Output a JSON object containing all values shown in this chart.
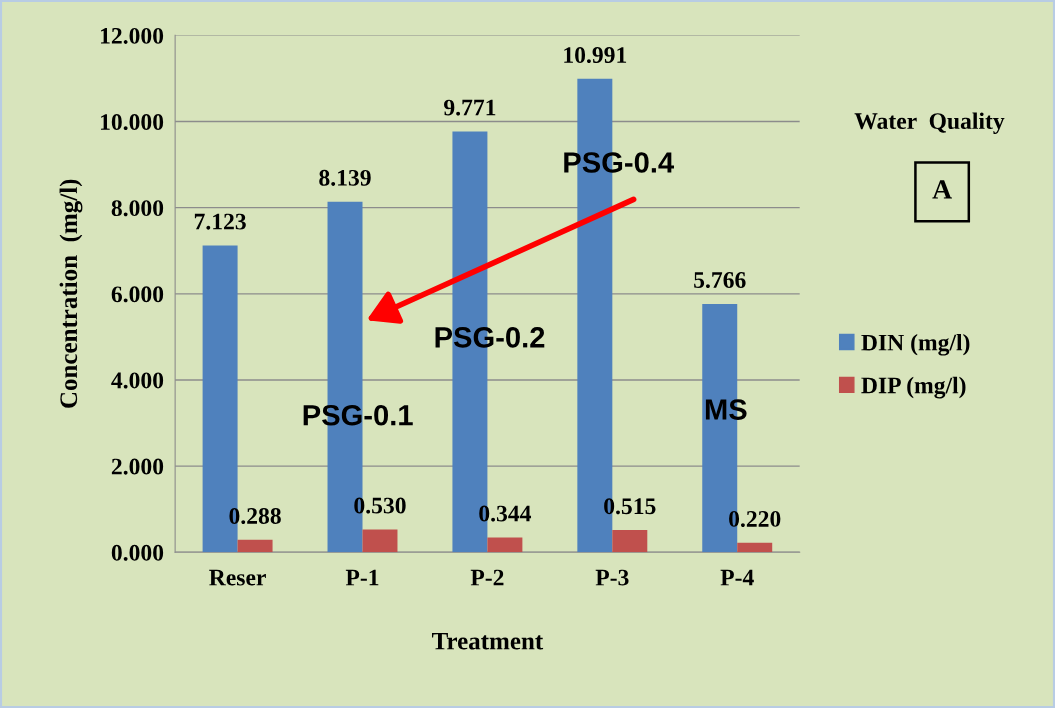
{
  "chart_data": {
    "type": "bar",
    "xlabel": "Treatment",
    "ylabel": "Concentration  (mg/l)",
    "categories": [
      "Reser",
      "P-1",
      "P-2",
      "P-3",
      "P-4"
    ],
    "series": [
      {
        "name": "DIN (mg/l)",
        "color": "#4f81bd",
        "values": [
          7.123,
          8.139,
          9.771,
          10.991,
          5.766
        ],
        "value_labels": [
          "7.123",
          "8.139",
          "9.771",
          "10.991",
          "5.766"
        ]
      },
      {
        "name": "DIP (mg/l)",
        "color": "#c0504d",
        "values": [
          0.288,
          0.53,
          0.344,
          0.515,
          0.22
        ],
        "value_labels": [
          "0.288",
          "0.530",
          "0.344",
          "0.515",
          "0.220"
        ]
      }
    ],
    "ylim": [
      0,
      12
    ],
    "yticks": [
      {
        "value": 0,
        "label": "0.000"
      },
      {
        "value": 2,
        "label": "2.000"
      },
      {
        "value": 4,
        "label": "4.000"
      },
      {
        "value": 6,
        "label": "6.000"
      },
      {
        "value": 8,
        "label": "8.000"
      },
      {
        "value": 10,
        "label": "10.000"
      },
      {
        "value": 12,
        "label": "12.000"
      }
    ],
    "grid": "y",
    "legend": "right",
    "annotations": [
      "PSG-0.4",
      "PSG-0.2",
      "PSG-0.1",
      "MS",
      "Water  Quality",
      "A"
    ]
  }
}
